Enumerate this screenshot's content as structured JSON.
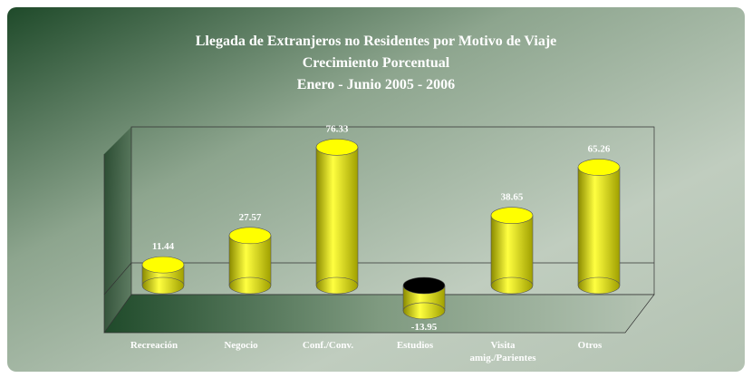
{
  "chart_data": {
    "type": "bar3d",
    "title": [
      "Llegada de Extranjeros no Residentes por Motivo de Viaje",
      "Crecimiento Porcentual",
      "Enero - Junio  2005 - 2006"
    ],
    "categories": [
      "Recreación",
      "Negocio",
      "Conf./Conv.",
      "Estudios",
      "Visita amig./Parientes",
      "Otros"
    ],
    "values": [
      11.44,
      27.57,
      76.33,
      -13.95,
      38.65,
      65.26
    ],
    "color": "#ffff00"
  }
}
